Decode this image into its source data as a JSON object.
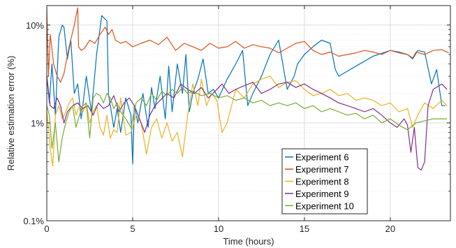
{
  "chart_data": {
    "type": "line",
    "xlabel": "Time (hours)",
    "ylabel": "Relative estimation error (%)",
    "xlim": [
      0,
      23.5
    ],
    "ylim": [
      0.1,
      15.8
    ],
    "y_scale": "log",
    "grid": true,
    "minor_grid": true,
    "legend_position": "bottom-center",
    "x_ticks": [
      0,
      5,
      10,
      15,
      20
    ],
    "x_tick_labels": [
      "0",
      "5",
      "10",
      "15",
      "20"
    ],
    "y_ticks": [
      0.1,
      1,
      10
    ],
    "y_tick_labels": [
      "0.1%",
      "1%",
      "10%"
    ],
    "series": [
      {
        "name": "Experiment 6",
        "color": "#0072BD",
        "x": [
          0,
          0.15,
          0.3,
          0.5,
          0.7,
          0.9,
          1.0,
          1.2,
          1.4,
          1.6,
          1.8,
          2.0,
          2.3,
          2.6,
          2.9,
          3.2,
          3.5,
          3.6,
          3.7,
          3.9,
          4.1,
          4.3,
          4.6,
          4.9,
          5.0,
          5.1,
          5.3,
          5.6,
          5.9,
          6.1,
          6.3,
          6.6,
          6.9,
          7.1,
          7.3,
          7.6,
          7.9,
          8.1,
          8.3,
          8.5,
          8.8,
          9.1,
          9.4,
          9.7,
          10.0,
          10.5,
          11.0,
          11.4,
          11.7,
          12.0,
          12.5,
          13.0,
          13.5,
          14.0,
          14.4,
          14.6,
          15.0,
          15.5,
          16.0,
          16.5,
          16.8,
          17.0,
          18.0,
          19.0,
          20.0,
          20.5,
          21.0,
          21.3,
          21.6,
          22.0,
          22.4,
          22.7,
          23.0,
          23.2
        ],
        "values": [
          3.0,
          1.6,
          4.0,
          1.2,
          7.5,
          10.0,
          9.5,
          4.5,
          7.0,
          2.0,
          2.5,
          1.1,
          3.0,
          1.3,
          5.0,
          12.5,
          11.0,
          1.9,
          1.5,
          0.9,
          1.4,
          0.8,
          1.8,
          1.2,
          0.38,
          1.5,
          1.0,
          2.0,
          0.9,
          2.3,
          1.4,
          3.0,
          1.1,
          3.8,
          1.3,
          4.0,
          2.0,
          5.0,
          1.3,
          2.0,
          2.8,
          4.5,
          2.0,
          2.2,
          1.8,
          2.8,
          4.0,
          5.5,
          1.5,
          2.0,
          3.0,
          5.0,
          7.0,
          2.2,
          3.0,
          4.0,
          5.0,
          6.0,
          7.0,
          6.5,
          3.5,
          3.0,
          3.8,
          4.8,
          5.5,
          5.3,
          5.0,
          4.5,
          5.5,
          5.3,
          2.5,
          3.5,
          1.5,
          1.5
        ]
      },
      {
        "name": "Experiment 7",
        "color": "#D95319",
        "x": [
          0,
          0.1,
          0.2,
          0.4,
          0.6,
          0.8,
          1.0,
          1.3,
          1.6,
          1.8,
          1.85,
          2.0,
          2.2,
          2.5,
          2.8,
          3.1,
          3.4,
          3.6,
          3.8,
          4.0,
          4.3,
          4.6,
          5.0,
          5.5,
          6.0,
          6.5,
          7.0,
          7.5,
          8.0,
          8.5,
          9.0,
          9.5,
          10.0,
          10.5,
          11.0,
          11.5,
          12.0,
          12.5,
          13.0,
          13.5,
          14.0,
          14.5,
          15.0,
          15.5,
          16.0,
          16.5,
          17.0,
          17.5,
          18.0,
          18.5,
          19.0,
          19.5,
          20.0,
          20.5,
          21.0,
          21.3,
          21.5,
          22.0,
          22.5,
          23.0,
          23.4
        ],
        "values": [
          15.0,
          3.0,
          8.0,
          4.0,
          3.0,
          2.6,
          3.2,
          6.0,
          10.0,
          15.0,
          6.0,
          5.5,
          5.8,
          7.0,
          6.5,
          8.0,
          9.5,
          8.0,
          9.0,
          7.0,
          6.5,
          6.8,
          6.0,
          6.5,
          7.0,
          6.3,
          7.5,
          5.5,
          6.5,
          6.0,
          5.5,
          6.5,
          5.8,
          6.0,
          6.8,
          5.8,
          6.3,
          6.0,
          5.8,
          5.2,
          5.8,
          6.5,
          6.8,
          5.5,
          5.0,
          5.3,
          4.8,
          5.0,
          5.2,
          5.5,
          5.3,
          5.0,
          5.5,
          5.2,
          5.0,
          4.6,
          5.3,
          5.0,
          5.5,
          5.6,
          5.2
        ]
      },
      {
        "name": "Experiment 8",
        "color": "#EDB120",
        "x": [
          0,
          0.1,
          0.2,
          0.35,
          0.5,
          0.7,
          0.9,
          1.1,
          1.3,
          1.5,
          1.7,
          1.9,
          2.1,
          2.3,
          2.5,
          2.7,
          2.9,
          3.1,
          3.3,
          3.5,
          3.7,
          3.9,
          4.1,
          4.3,
          4.6,
          4.9,
          5.2,
          5.5,
          5.8,
          6.1,
          6.4,
          6.7,
          7.0,
          7.3,
          7.6,
          7.9,
          8.2,
          8.5,
          8.8,
          9.0,
          9.3,
          9.6,
          9.9,
          10.2,
          10.5,
          11.0,
          11.5,
          12.0,
          12.5,
          13.0,
          13.5,
          14.0,
          14.5,
          15.0,
          15.5,
          16.0,
          16.5,
          17.0,
          17.5,
          18.0,
          18.5,
          19.0,
          19.5,
          20.0,
          20.5,
          21.0,
          21.3,
          21.6,
          22.0,
          22.5,
          23.0,
          23.3
        ],
        "values": [
          1.3,
          0.9,
          0.55,
          0.36,
          1.2,
          1.5,
          1.1,
          1.3,
          1.6,
          1.8,
          1.2,
          1.5,
          1.3,
          1.6,
          1.0,
          1.3,
          1.5,
          0.9,
          0.75,
          1.2,
          0.7,
          0.85,
          0.8,
          1.8,
          0.75,
          0.8,
          1.2,
          1.0,
          0.48,
          0.9,
          1.1,
          0.7,
          1.0,
          0.65,
          0.8,
          0.45,
          1.2,
          2.5,
          1.5,
          2.8,
          1.5,
          2.0,
          1.7,
          0.8,
          1.0,
          2.2,
          1.8,
          2.5,
          2.8,
          3.0,
          2.3,
          2.6,
          2.7,
          2.2,
          1.9,
          2.0,
          2.2,
          1.9,
          2.0,
          1.7,
          1.8,
          1.7,
          1.5,
          1.6,
          1.3,
          1.4,
          0.9,
          1.2,
          1.6,
          1.4,
          1.7,
          1.5
        ]
      },
      {
        "name": "Experiment 9",
        "color": "#7E2F8E",
        "x": [
          0,
          0.2,
          0.4,
          0.6,
          0.8,
          1.0,
          1.2,
          1.5,
          1.8,
          2.1,
          2.4,
          2.7,
          3.0,
          3.3,
          3.6,
          3.9,
          4.2,
          4.5,
          4.8,
          5.1,
          5.4,
          5.7,
          6.0,
          6.3,
          6.6,
          7.0,
          7.4,
          7.8,
          8.2,
          8.6,
          9.0,
          9.4,
          9.8,
          10.2,
          10.6,
          11.0,
          11.5,
          12.0,
          12.5,
          13.0,
          13.5,
          14.0,
          14.5,
          15.0,
          15.5,
          16.0,
          16.5,
          17.0,
          17.5,
          18.0,
          18.5,
          19.0,
          19.5,
          20.0,
          20.4,
          20.8,
          21.0,
          21.2,
          21.4,
          21.6,
          21.8,
          22.0,
          22.2,
          22.5,
          23.0,
          23.3
        ],
        "values": [
          3.0,
          1.5,
          1.4,
          1.8,
          1.5,
          1.0,
          1.3,
          1.5,
          1.6,
          1.4,
          1.5,
          1.2,
          1.6,
          1.4,
          1.5,
          1.9,
          1.3,
          1.6,
          1.8,
          1.5,
          1.1,
          0.8,
          1.2,
          1.5,
          1.7,
          2.0,
          1.8,
          2.5,
          2.2,
          2.0,
          2.3,
          1.8,
          2.1,
          2.5,
          2.0,
          2.2,
          2.4,
          2.6,
          2.0,
          2.2,
          2.5,
          2.6,
          2.3,
          2.5,
          2.2,
          2.0,
          1.8,
          1.6,
          1.5,
          1.4,
          1.3,
          1.4,
          1.2,
          1.0,
          0.9,
          1.1,
          0.95,
          0.5,
          0.9,
          0.35,
          0.33,
          0.4,
          1.5,
          2.2,
          2.5,
          2.2
        ]
      },
      {
        "name": "Experiment 10",
        "color": "#77AC30",
        "x": [
          0,
          0.15,
          0.3,
          0.5,
          0.7,
          0.9,
          1.1,
          1.3,
          1.5,
          1.7,
          1.9,
          2.1,
          2.3,
          2.5,
          2.7,
          2.9,
          3.1,
          3.3,
          3.5,
          3.7,
          3.9,
          4.1,
          4.3,
          4.6,
          4.9,
          5.2,
          5.5,
          5.8,
          6.1,
          6.4,
          6.7,
          7.0,
          7.3,
          7.6,
          7.9,
          8.2,
          8.5,
          9.0,
          9.5,
          10.0,
          10.5,
          11.0,
          11.5,
          12.0,
          12.5,
          13.0,
          13.5,
          14.0,
          14.5,
          15.0,
          15.5,
          16.0,
          16.5,
          17.0,
          17.5,
          18.0,
          18.5,
          19.0,
          19.5,
          20.0,
          20.5,
          21.0,
          21.5,
          22.0,
          22.5,
          23.0,
          23.3
        ],
        "values": [
          1.5,
          1.2,
          0.55,
          1.0,
          0.4,
          0.7,
          1.0,
          1.3,
          1.5,
          0.9,
          1.2,
          1.5,
          1.6,
          0.7,
          1.8,
          2.0,
          1.9,
          1.6,
          2.0,
          1.8,
          1.4,
          1.6,
          1.3,
          1.1,
          0.9,
          1.6,
          1.8,
          1.5,
          2.0,
          1.7,
          2.1,
          1.9,
          2.2,
          2.0,
          2.3,
          2.0,
          2.1,
          1.9,
          2.0,
          1.8,
          1.9,
          1.7,
          1.8,
          1.6,
          1.7,
          1.5,
          1.6,
          1.5,
          1.6,
          1.4,
          1.5,
          1.3,
          1.4,
          1.3,
          1.2,
          1.25,
          1.1,
          1.2,
          1.0,
          1.1,
          0.95,
          0.85,
          1.0,
          1.05,
          1.1,
          1.1,
          1.1
        ]
      }
    ]
  }
}
